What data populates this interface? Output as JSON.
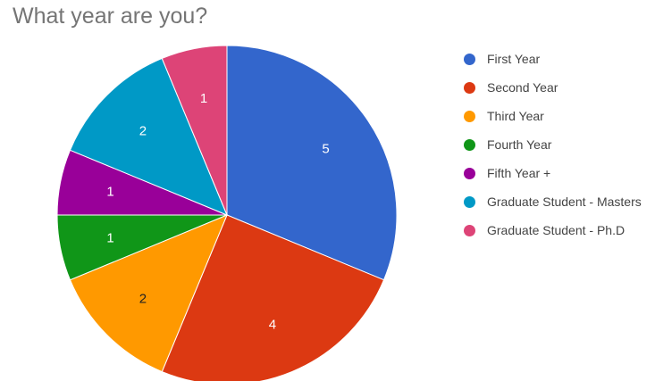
{
  "chart_data": {
    "type": "pie",
    "title": "What year are you?",
    "slices": [
      {
        "label": "First Year",
        "value": 5,
        "color": "#3366CC"
      },
      {
        "label": "Second Year",
        "value": 4,
        "color": "#DC3912"
      },
      {
        "label": "Third Year",
        "value": 2,
        "color": "#FF9900"
      },
      {
        "label": "Fourth Year",
        "value": 1,
        "color": "#109618"
      },
      {
        "label": "Fifth Year +",
        "value": 1,
        "color": "#990099"
      },
      {
        "label": "Graduate Student - Masters",
        "value": 2,
        "color": "#0099C6"
      },
      {
        "label": "Graduate Student - Ph.D",
        "value": 1,
        "color": "#DD4477"
      }
    ],
    "legend_position": "right",
    "data_label_colors": {
      "light": "#ffffff",
      "dark": "#222222"
    }
  }
}
